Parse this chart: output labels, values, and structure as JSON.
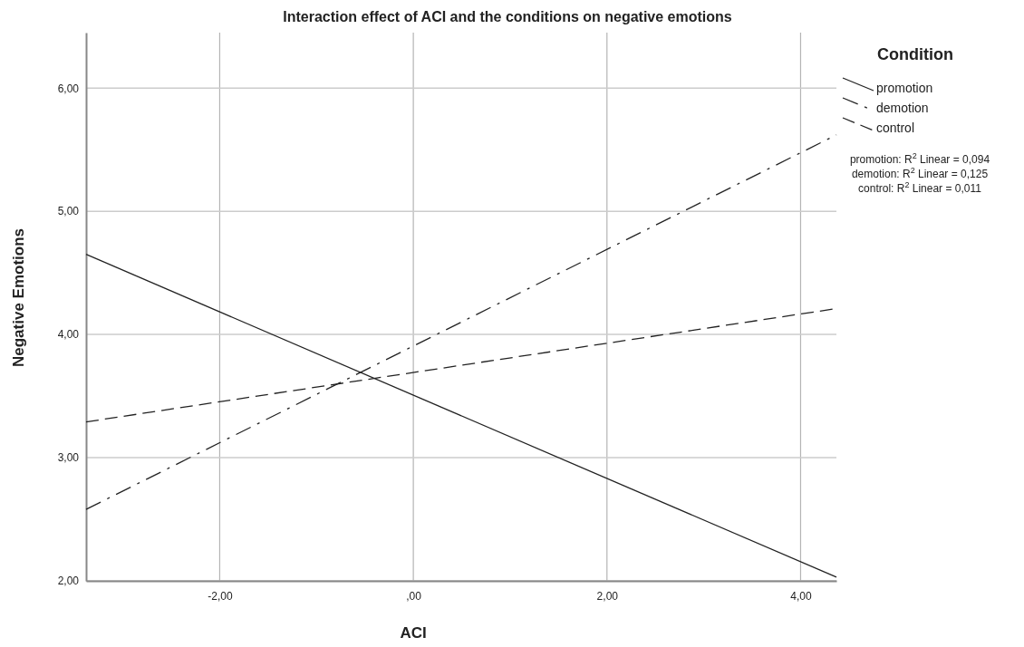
{
  "chart_data": {
    "type": "line",
    "title": "Interaction effect of ACI and the conditions on negative emotions",
    "xlabel": "ACI",
    "ylabel": "Negative Emotions",
    "legend_title": "Condition",
    "xlim": [
      -3.38,
      4.37
    ],
    "ylim": [
      2,
      6.45
    ],
    "xticks": [
      {
        "value": -2,
        "label": "-2,00"
      },
      {
        "value": 0,
        "label": ",00"
      },
      {
        "value": 2,
        "label": "2,00"
      },
      {
        "value": 4,
        "label": "4,00"
      }
    ],
    "yticks": [
      {
        "value": 2,
        "label": "2,00"
      },
      {
        "value": 3,
        "label": "3,00"
      },
      {
        "value": 4,
        "label": "4,00"
      },
      {
        "value": 5,
        "label": "5,00"
      },
      {
        "value": 6,
        "label": "6,00"
      }
    ],
    "x": [
      -3.38,
      4.37
    ],
    "grid": true,
    "legend": "top right",
    "marker": "none",
    "series": [
      {
        "name": "promotion",
        "color": "#222222",
        "line_style": "solid",
        "values": [
          4.65,
          2.03
        ]
      },
      {
        "name": "demotion",
        "color": "#222222",
        "line_style": "dashdot",
        "values": [
          2.58,
          5.62
        ]
      },
      {
        "name": "control",
        "color": "#222222",
        "line_style": "dashed",
        "values": [
          3.29,
          4.21
        ]
      }
    ],
    "annotations": [
      "promotion: R$^{2}$ Linear = 0,094",
      "demotion: R$^{2}$ Linear = 0,125",
      "control: R$^{2}$ Linear = 0,011"
    ]
  }
}
